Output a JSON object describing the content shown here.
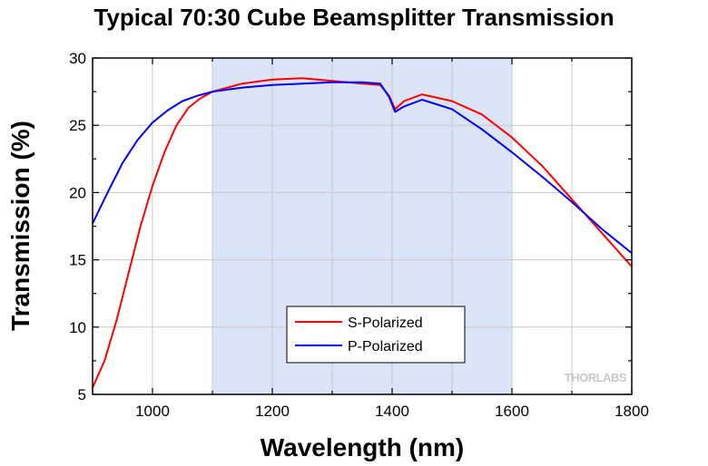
{
  "chart_data": {
    "type": "line",
    "title": "Typical 70:30 Cube Beamsplitter Transmission",
    "xlabel": "Wavelength (nm)",
    "ylabel": "Transmission (%)",
    "xlim": [
      900,
      1800
    ],
    "ylim": [
      5,
      30
    ],
    "x_ticks": [
      "1000",
      "1200",
      "1400",
      "1600",
      "1800"
    ],
    "y_ticks": [
      "5",
      "10",
      "15",
      "20",
      "25",
      "30"
    ],
    "grid": true,
    "shaded_region": {
      "x_start": 1100,
      "x_end": 1600,
      "color": "#dce4f7"
    },
    "legend": {
      "placement": "bottom-center"
    },
    "series": [
      {
        "name": "S-Polarized",
        "color": "#ff0000",
        "x": [
          900,
          920,
          940,
          960,
          980,
          1000,
          1020,
          1040,
          1060,
          1080,
          1100,
          1150,
          1200,
          1250,
          1300,
          1350,
          1380,
          1395,
          1405,
          1420,
          1450,
          1500,
          1550,
          1600,
          1650,
          1700,
          1750,
          1800
        ],
        "y": [
          5.5,
          7.5,
          10.5,
          14.0,
          17.5,
          20.5,
          23.0,
          25.0,
          26.3,
          27.0,
          27.5,
          28.1,
          28.4,
          28.5,
          28.3,
          28.1,
          28.0,
          27.2,
          26.2,
          26.8,
          27.3,
          26.8,
          25.8,
          24.1,
          22.0,
          19.5,
          17.0,
          14.5
        ]
      },
      {
        "name": "P-Polarized",
        "color": "#0000ff",
        "x": [
          900,
          925,
          950,
          975,
          1000,
          1025,
          1050,
          1075,
          1100,
          1150,
          1200,
          1250,
          1300,
          1350,
          1380,
          1395,
          1405,
          1420,
          1450,
          1500,
          1550,
          1600,
          1650,
          1700,
          1750,
          1800
        ],
        "y": [
          17.7,
          20.0,
          22.2,
          23.9,
          25.2,
          26.1,
          26.8,
          27.2,
          27.5,
          27.8,
          28.0,
          28.1,
          28.2,
          28.2,
          28.1,
          27.1,
          26.0,
          26.4,
          26.9,
          26.2,
          24.7,
          23.0,
          21.2,
          19.3,
          17.3,
          15.5
        ]
      }
    ],
    "watermark": "THORLABS"
  }
}
